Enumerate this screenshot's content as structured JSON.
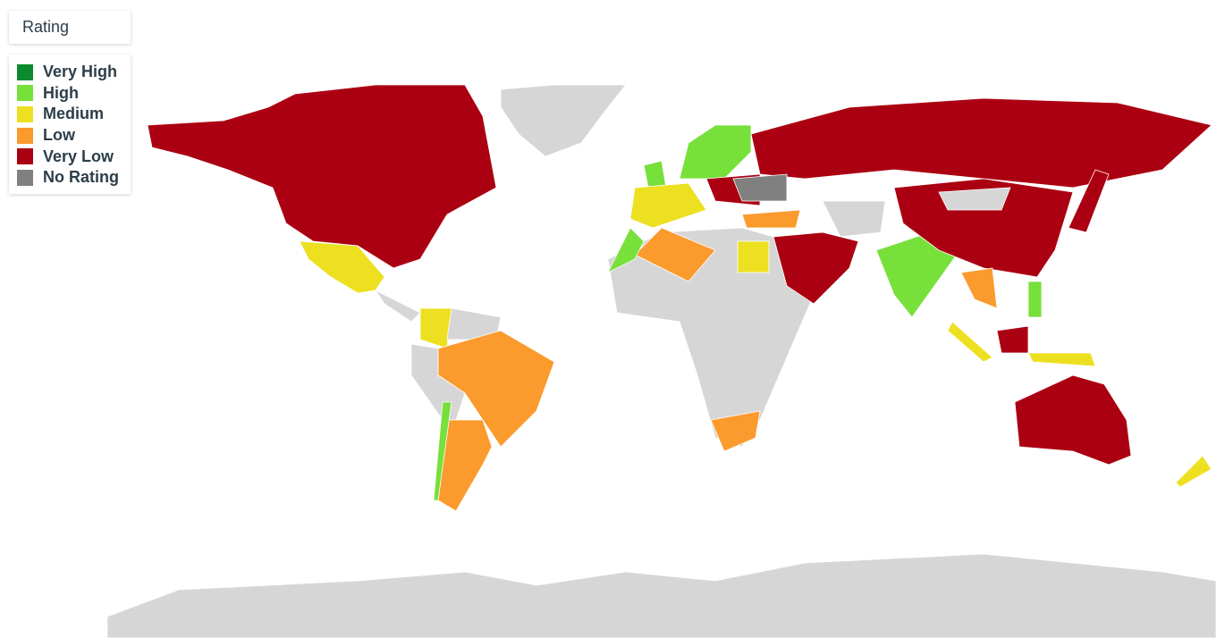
{
  "legend": {
    "title": "Rating",
    "items": [
      {
        "label": "Very High",
        "color": "#0b8a2f"
      },
      {
        "label": "High",
        "color": "#77e03a"
      },
      {
        "label": "Medium",
        "color": "#ede021"
      },
      {
        "label": "Low",
        "color": "#fb9a2d"
      },
      {
        "label": "Very Low",
        "color": "#ab0011"
      },
      {
        "label": "No Rating",
        "color": "#808080"
      }
    ]
  }
}
